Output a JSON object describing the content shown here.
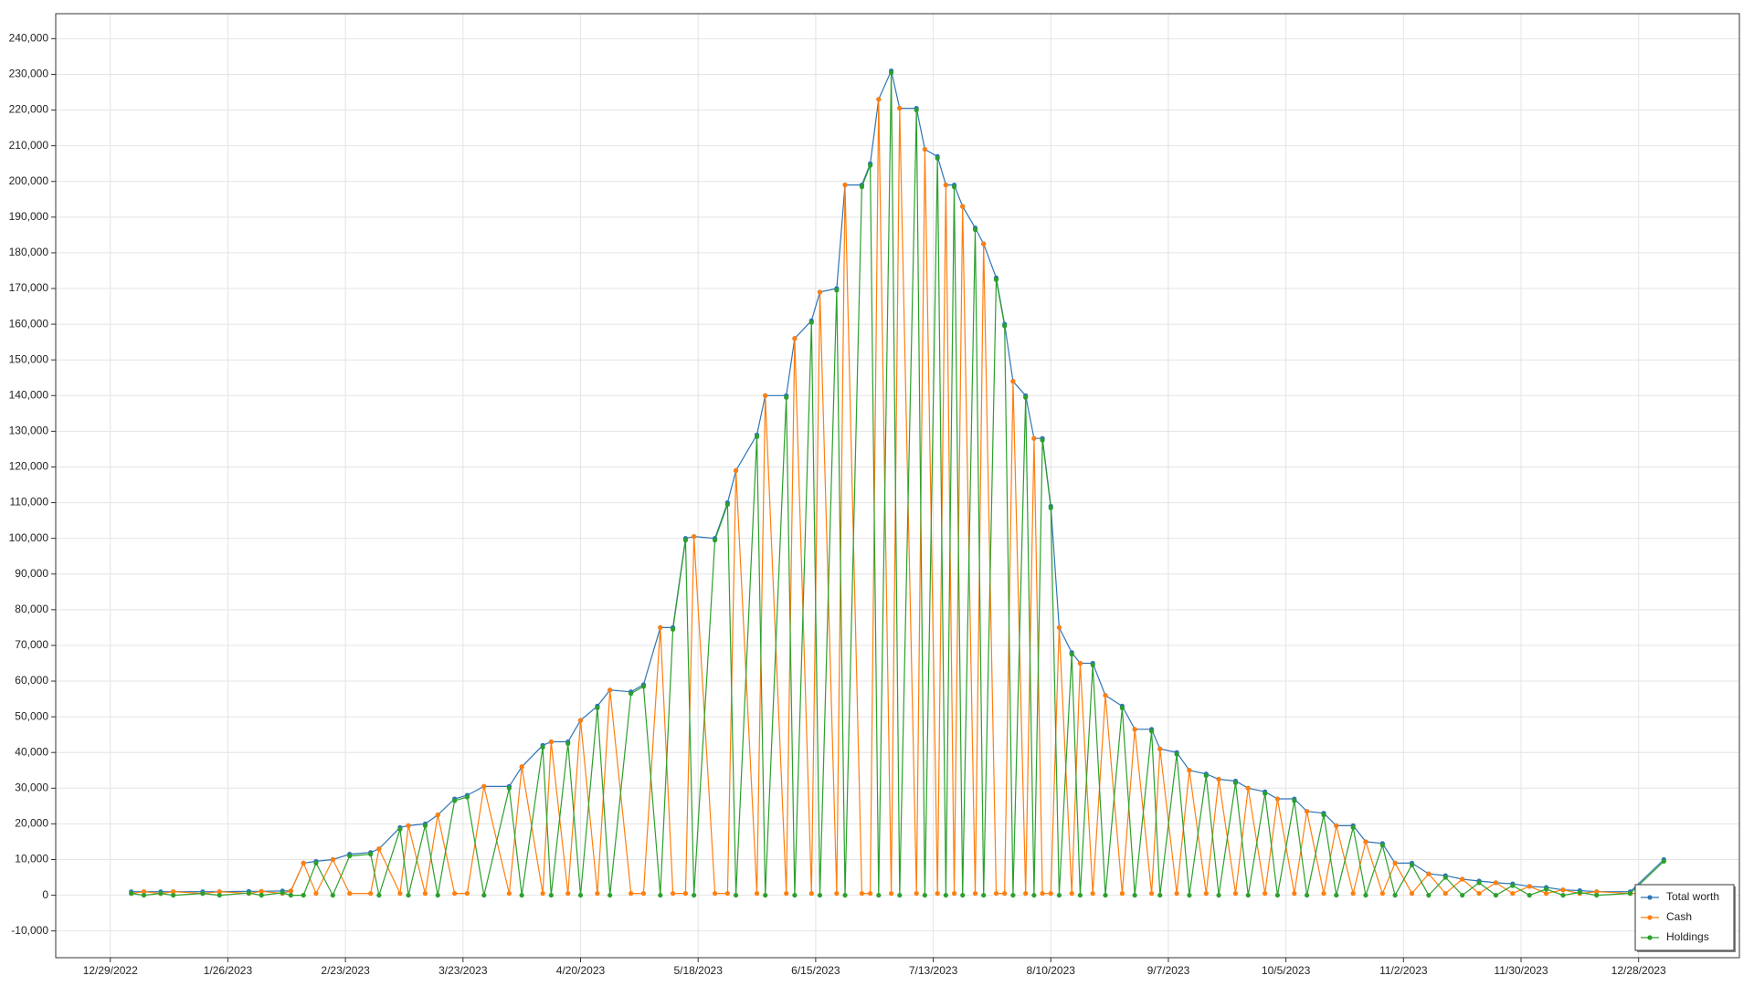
{
  "chart_data": {
    "type": "line",
    "x": [
      "2023-01-03",
      "2023-01-06",
      "2023-01-10",
      "2023-01-13",
      "2023-01-20",
      "2023-01-24",
      "2023-01-31",
      "2023-02-03",
      "2023-02-08",
      "2023-02-10",
      "2023-02-13",
      "2023-02-16",
      "2023-02-20",
      "2023-02-24",
      "2023-03-01",
      "2023-03-03",
      "2023-03-08",
      "2023-03-10",
      "2023-03-14",
      "2023-03-17",
      "2023-03-21",
      "2023-03-24",
      "2023-03-28",
      "2023-04-03",
      "2023-04-06",
      "2023-04-11",
      "2023-04-13",
      "2023-04-17",
      "2023-04-20",
      "2023-04-24",
      "2023-04-27",
      "2023-05-02",
      "2023-05-05",
      "2023-05-09",
      "2023-05-12",
      "2023-05-15",
      "2023-05-17",
      "2023-05-22",
      "2023-05-25",
      "2023-05-27",
      "2023-06-01",
      "2023-06-03",
      "2023-06-08",
      "2023-06-10",
      "2023-06-14",
      "2023-06-16",
      "2023-06-20",
      "2023-06-22",
      "2023-06-26",
      "2023-06-28",
      "2023-06-30",
      "2023-07-03",
      "2023-07-05",
      "2023-07-09",
      "2023-07-11",
      "2023-07-14",
      "2023-07-16",
      "2023-07-18",
      "2023-07-20",
      "2023-07-23",
      "2023-07-25",
      "2023-07-28",
      "2023-07-30",
      "2023-08-01",
      "2023-08-04",
      "2023-08-06",
      "2023-08-08",
      "2023-08-10",
      "2023-08-12",
      "2023-08-15",
      "2023-08-17",
      "2023-08-20",
      "2023-08-23",
      "2023-08-27",
      "2023-08-30",
      "2023-09-03",
      "2023-09-05",
      "2023-09-09",
      "2023-09-12",
      "2023-09-16",
      "2023-09-19",
      "2023-09-23",
      "2023-09-26",
      "2023-09-30",
      "2023-10-03",
      "2023-10-07",
      "2023-10-10",
      "2023-10-14",
      "2023-10-17",
      "2023-10-21",
      "2023-10-24",
      "2023-10-28",
      "2023-10-31",
      "2023-11-04",
      "2023-11-08",
      "2023-11-12",
      "2023-11-16",
      "2023-11-20",
      "2023-11-24",
      "2023-11-28",
      "2023-12-02",
      "2023-12-06",
      "2023-12-10",
      "2023-12-14",
      "2023-12-18",
      "2023-12-26",
      "2024-01-03"
    ],
    "series": [
      {
        "name": "Total worth",
        "color": "#2e75b6",
        "values": [
          1000,
          1000,
          1000,
          1000,
          1000,
          1000,
          1100,
          1100,
          1200,
          1200,
          9000,
          9500,
          10000,
          11500,
          12000,
          13000,
          19000,
          19500,
          20000,
          22500,
          27000,
          28000,
          30500,
          30500,
          36000,
          42000,
          43000,
          43000,
          49000,
          53000,
          57500,
          57000,
          59000,
          75000,
          75000,
          100000,
          100500,
          100000,
          110000,
          119000,
          129000,
          140000,
          140000,
          156000,
          161000,
          169000,
          170000,
          199000,
          199000,
          205000,
          223000,
          231000,
          220500,
          220500,
          209000,
          207000,
          199000,
          199000,
          193000,
          187000,
          182500,
          173000,
          160000,
          144000,
          140000,
          128000,
          128000,
          109000,
          75000,
          68000,
          65000,
          65000,
          56000,
          53000,
          46500,
          46500,
          41000,
          40000,
          35000,
          34000,
          32500,
          32000,
          30000,
          29000,
          27000,
          27000,
          23500,
          23000,
          19500,
          19500,
          15000,
          14500,
          9000,
          9000,
          6000,
          5500,
          4500,
          4000,
          3500,
          3200,
          2500,
          2200,
          1500,
          1300,
          1000,
          1000,
          10000
        ]
      },
      {
        "name": "Cash",
        "color": "#ff7f0e",
        "values": [
          500,
          1000,
          500,
          1000,
          500,
          1000,
          500,
          1100,
          500,
          1200,
          9000,
          500,
          10000,
          500,
          500,
          13000,
          500,
          19500,
          500,
          22500,
          500,
          500,
          30500,
          500,
          36000,
          500,
          43000,
          500,
          49000,
          500,
          57500,
          500,
          500,
          75000,
          500,
          500,
          100500,
          500,
          500,
          119000,
          500,
          140000,
          500,
          156000,
          500,
          169000,
          500,
          199000,
          500,
          500,
          223000,
          500,
          220500,
          500,
          209000,
          500,
          199000,
          500,
          193000,
          500,
          182500,
          500,
          500,
          144000,
          500,
          128000,
          500,
          500,
          75000,
          500,
          65000,
          500,
          56000,
          500,
          46500,
          500,
          41000,
          500,
          35000,
          500,
          32500,
          500,
          30000,
          500,
          27000,
          500,
          23500,
          500,
          19500,
          500,
          15000,
          500,
          9000,
          500,
          6000,
          500,
          4500,
          500,
          3500,
          500,
          2500,
          500,
          1500,
          500,
          1000,
          500,
          500
        ]
      },
      {
        "name": "Holdings",
        "color": "#2ca02c",
        "values": [
          500,
          0,
          500,
          0,
          500,
          0,
          600,
          0,
          700,
          0,
          0,
          9000,
          0,
          11000,
          11500,
          0,
          18500,
          0,
          19500,
          0,
          26500,
          27500,
          0,
          30000,
          0,
          41500,
          0,
          42500,
          0,
          52500,
          0,
          56500,
          58500,
          0,
          74500,
          99500,
          0,
          99500,
          109500,
          0,
          128500,
          0,
          139500,
          0,
          160500,
          0,
          169500,
          0,
          198500,
          204500,
          0,
          230500,
          0,
          220000,
          0,
          206500,
          0,
          198500,
          0,
          186500,
          0,
          172500,
          159500,
          0,
          139500,
          0,
          127500,
          108500,
          0,
          67500,
          0,
          64500,
          0,
          52500,
          0,
          46000,
          0,
          39500,
          0,
          33500,
          0,
          31500,
          0,
          28500,
          0,
          26500,
          0,
          22500,
          0,
          19000,
          0,
          14000,
          0,
          8500,
          0,
          5000,
          0,
          3500,
          0,
          2700,
          0,
          1700,
          0,
          800,
          0,
          500,
          9500
        ]
      }
    ],
    "xlim": [
      "2022-12-16",
      "2024-01-21"
    ],
    "xticks": [
      {
        "value": "2022-12-29",
        "label": "12/29/2022"
      },
      {
        "value": "2023-01-26",
        "label": "1/26/2023"
      },
      {
        "value": "2023-02-23",
        "label": "2/23/2023"
      },
      {
        "value": "2023-03-23",
        "label": "3/23/2023"
      },
      {
        "value": "2023-04-20",
        "label": "4/20/2023"
      },
      {
        "value": "2023-05-18",
        "label": "5/18/2023"
      },
      {
        "value": "2023-06-15",
        "label": "6/15/2023"
      },
      {
        "value": "2023-07-13",
        "label": "7/13/2023"
      },
      {
        "value": "2023-08-10",
        "label": "8/10/2023"
      },
      {
        "value": "2023-09-07",
        "label": "9/7/2023"
      },
      {
        "value": "2023-10-05",
        "label": "10/5/2023"
      },
      {
        "value": "2023-11-02",
        "label": "11/2/2023"
      },
      {
        "value": "2023-11-30",
        "label": "11/30/2023"
      },
      {
        "value": "2023-12-28",
        "label": "12/28/2023"
      }
    ],
    "ylim": [
      -17500,
      247000
    ],
    "yticks": [
      {
        "value": -10000,
        "label": "-10,000"
      },
      0,
      {
        "value": 10000,
        "label": "10,000"
      },
      {
        "value": 20000,
        "label": "20,000"
      },
      {
        "value": 30000,
        "label": "30,000"
      },
      {
        "value": 40000,
        "label": "40,000"
      },
      {
        "value": 50000,
        "label": "50,000"
      },
      {
        "value": 60000,
        "label": "60,000"
      },
      {
        "value": 70000,
        "label": "70,000"
      },
      {
        "value": 80000,
        "label": "80,000"
      },
      {
        "value": 90000,
        "label": "90,000"
      },
      {
        "value": 100000,
        "label": "100,000"
      },
      {
        "value": 110000,
        "label": "110,000"
      },
      {
        "value": 120000,
        "label": "120,000"
      },
      {
        "value": 130000,
        "label": "130,000"
      },
      {
        "value": 140000,
        "label": "140,000"
      },
      {
        "value": 150000,
        "label": "150,000"
      },
      {
        "value": 160000,
        "label": "160,000"
      },
      {
        "value": 170000,
        "label": "170,000"
      },
      {
        "value": 180000,
        "label": "180,000"
      },
      {
        "value": 190000,
        "label": "190,000"
      },
      {
        "value": 200000,
        "label": "200,000"
      },
      {
        "value": 210000,
        "label": "210,000"
      },
      {
        "value": 220000,
        "label": "220,000"
      },
      {
        "value": 230000,
        "label": "230,000"
      },
      {
        "value": 240000,
        "label": "240,000"
      }
    ],
    "grid": true,
    "legend": "bottom-right"
  }
}
